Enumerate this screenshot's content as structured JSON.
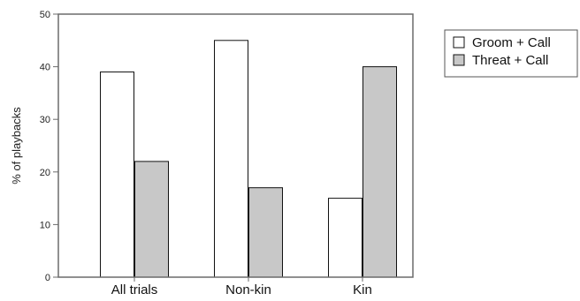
{
  "chart_data": {
    "type": "bar",
    "title": "",
    "xlabel": "",
    "ylabel": "% of playbacks",
    "ylim": [
      0,
      50
    ],
    "yticks": [
      0,
      10,
      20,
      30,
      40,
      50
    ],
    "categories": [
      "All trials",
      "Non-kin",
      "Kin"
    ],
    "series": [
      {
        "name": "Groom + Call",
        "values": [
          39,
          45,
          15
        ],
        "color": "#ffffff"
      },
      {
        "name": "Threat + Call",
        "values": [
          22,
          17,
          40
        ],
        "color": "#c8c8c8"
      }
    ],
    "grid": false,
    "legend": "right"
  }
}
